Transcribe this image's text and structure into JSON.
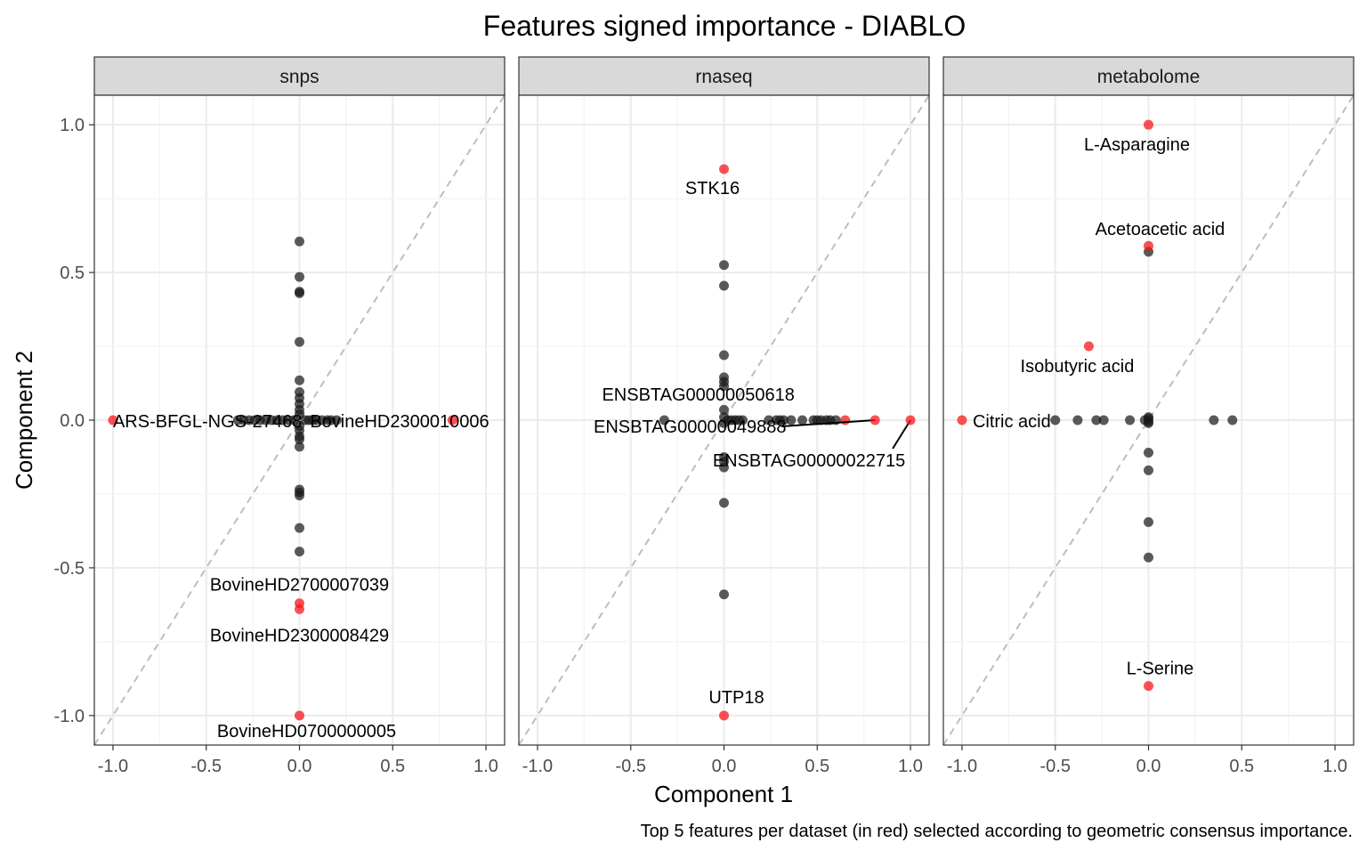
{
  "chart_data": {
    "type": "scatter",
    "title": "Features signed importance - DIABLO",
    "xlabel": "Component 1",
    "ylabel": "Component 2",
    "caption": "Top 5 features per dataset (in red) selected according to geometric consensus importance.",
    "xlim": [
      -1.1,
      1.1
    ],
    "ylim": [
      -1.1,
      1.1
    ],
    "x_ticks": [
      -1.0,
      -0.5,
      0.0,
      0.5,
      1.0
    ],
    "x_tick_labels": [
      "-1.0",
      "-0.5",
      "0.0",
      "0.5",
      "1.0"
    ],
    "y_ticks": [
      -1.0,
      -0.5,
      0.0,
      0.5,
      1.0
    ],
    "y_tick_labels": [
      "-1.0",
      "-0.5",
      "0.0",
      "0.5",
      "1.0"
    ],
    "grid": true,
    "reference_line": "y = x (dashed)",
    "colors": {
      "top": "#f8171b",
      "other": "#1a1a1a",
      "strip": "#d9d9d9",
      "grid": "#ebebeb",
      "ref_line": "#bdbdbd"
    },
    "panels": [
      {
        "name": "snps",
        "top_features": [
          {
            "label": "ARS-BFGL-NGS-27468",
            "x": -1.0,
            "y": 0.0
          },
          {
            "label": "BovineHD2300010006",
            "x": 0.82,
            "y": 0.0
          },
          {
            "label": "BovineHD2700007039",
            "x": 0.0,
            "y": -0.62
          },
          {
            "label": "BovineHD2300008429",
            "x": 0.0,
            "y": -0.64
          },
          {
            "label": "BovineHD0700000005",
            "x": 0.0,
            "y": -1.0
          }
        ],
        "other_points": [
          [
            0,
            0.605
          ],
          [
            0,
            0.485
          ],
          [
            0,
            0.435
          ],
          [
            0,
            0.43
          ],
          [
            0,
            0.265
          ],
          [
            0,
            0.135
          ],
          [
            0,
            0.095
          ],
          [
            0,
            0.075
          ],
          [
            0,
            0.055
          ],
          [
            0,
            0.035
          ],
          [
            0,
            0.02
          ],
          [
            0,
            -0.02
          ],
          [
            0,
            -0.035
          ],
          [
            0,
            -0.055
          ],
          [
            0,
            -0.065
          ],
          [
            0,
            -0.09
          ],
          [
            0,
            -0.235
          ],
          [
            0,
            -0.245
          ],
          [
            0,
            -0.255
          ],
          [
            0,
            -0.365
          ],
          [
            0,
            -0.445
          ],
          [
            -0.33,
            0
          ],
          [
            -0.3,
            0
          ],
          [
            -0.27,
            0
          ],
          [
            -0.24,
            0
          ],
          [
            -0.21,
            0
          ],
          [
            -0.18,
            0
          ],
          [
            -0.15,
            0
          ],
          [
            -0.12,
            0
          ],
          [
            -0.09,
            0
          ],
          [
            -0.06,
            0
          ],
          [
            -0.03,
            0
          ],
          [
            0.03,
            0
          ],
          [
            0.05,
            0
          ],
          [
            0.07,
            0
          ],
          [
            0.09,
            0
          ],
          [
            0.12,
            0
          ],
          [
            0.15,
            0
          ],
          [
            0.17,
            0
          ],
          [
            0.2,
            0
          ]
        ]
      },
      {
        "name": "rnaseq",
        "top_features": [
          {
            "label": "STK16",
            "x": 0.0,
            "y": 0.85
          },
          {
            "label": "ENSBTAG00000050618",
            "x": 0.65,
            "y": 0.0
          },
          {
            "label": "ENSBTAG00000049888",
            "x": 0.81,
            "y": 0.0
          },
          {
            "label": "ENSBTAG00000022715",
            "x": 1.0,
            "y": 0.0
          },
          {
            "label": "UTP18",
            "x": 0.0,
            "y": -1.0
          }
        ],
        "other_points": [
          [
            0,
            0.525
          ],
          [
            0,
            0.455
          ],
          [
            0,
            0.22
          ],
          [
            0,
            0.145
          ],
          [
            0,
            0.13
          ],
          [
            0,
            0.115
          ],
          [
            0,
            0.035
          ],
          [
            0,
            0.01
          ],
          [
            0,
            -0.01
          ],
          [
            0,
            -0.125
          ],
          [
            0,
            -0.14
          ],
          [
            0,
            -0.16
          ],
          [
            0,
            -0.28
          ],
          [
            0,
            -0.59
          ],
          [
            -0.32,
            0
          ],
          [
            0.02,
            0
          ],
          [
            0.04,
            0
          ],
          [
            0.06,
            0
          ],
          [
            0.08,
            0
          ],
          [
            0.1,
            0
          ],
          [
            0.24,
            0
          ],
          [
            0.28,
            0
          ],
          [
            0.3,
            0
          ],
          [
            0.32,
            0
          ],
          [
            0.36,
            0
          ],
          [
            0.42,
            0
          ],
          [
            0.48,
            0
          ],
          [
            0.5,
            0
          ],
          [
            0.52,
            0
          ],
          [
            0.55,
            0
          ],
          [
            0.57,
            0
          ],
          [
            0.6,
            0
          ]
        ]
      },
      {
        "name": "metabolome",
        "top_features": [
          {
            "label": "L-Asparagine",
            "x": 0.0,
            "y": 1.0
          },
          {
            "label": "Acetoacetic acid",
            "x": 0.0,
            "y": 0.59
          },
          {
            "label": "Isobutyric acid",
            "x": -0.32,
            "y": 0.25
          },
          {
            "label": "Citric acid",
            "x": -1.0,
            "y": 0.0
          },
          {
            "label": "L-Serine",
            "x": 0.0,
            "y": -0.9
          }
        ],
        "other_points": [
          [
            0,
            0.57
          ],
          [
            0,
            0.01
          ],
          [
            0,
            0.005
          ],
          [
            0,
            -0.005
          ],
          [
            0,
            -0.01
          ],
          [
            0,
            -0.11
          ],
          [
            0,
            -0.17
          ],
          [
            0,
            -0.345
          ],
          [
            0,
            -0.465
          ],
          [
            -0.5,
            0
          ],
          [
            -0.38,
            0
          ],
          [
            -0.28,
            0
          ],
          [
            -0.24,
            0
          ],
          [
            -0.1,
            0
          ],
          [
            -0.02,
            0
          ],
          [
            0.35,
            0
          ],
          [
            0.45,
            0
          ]
        ]
      }
    ]
  }
}
